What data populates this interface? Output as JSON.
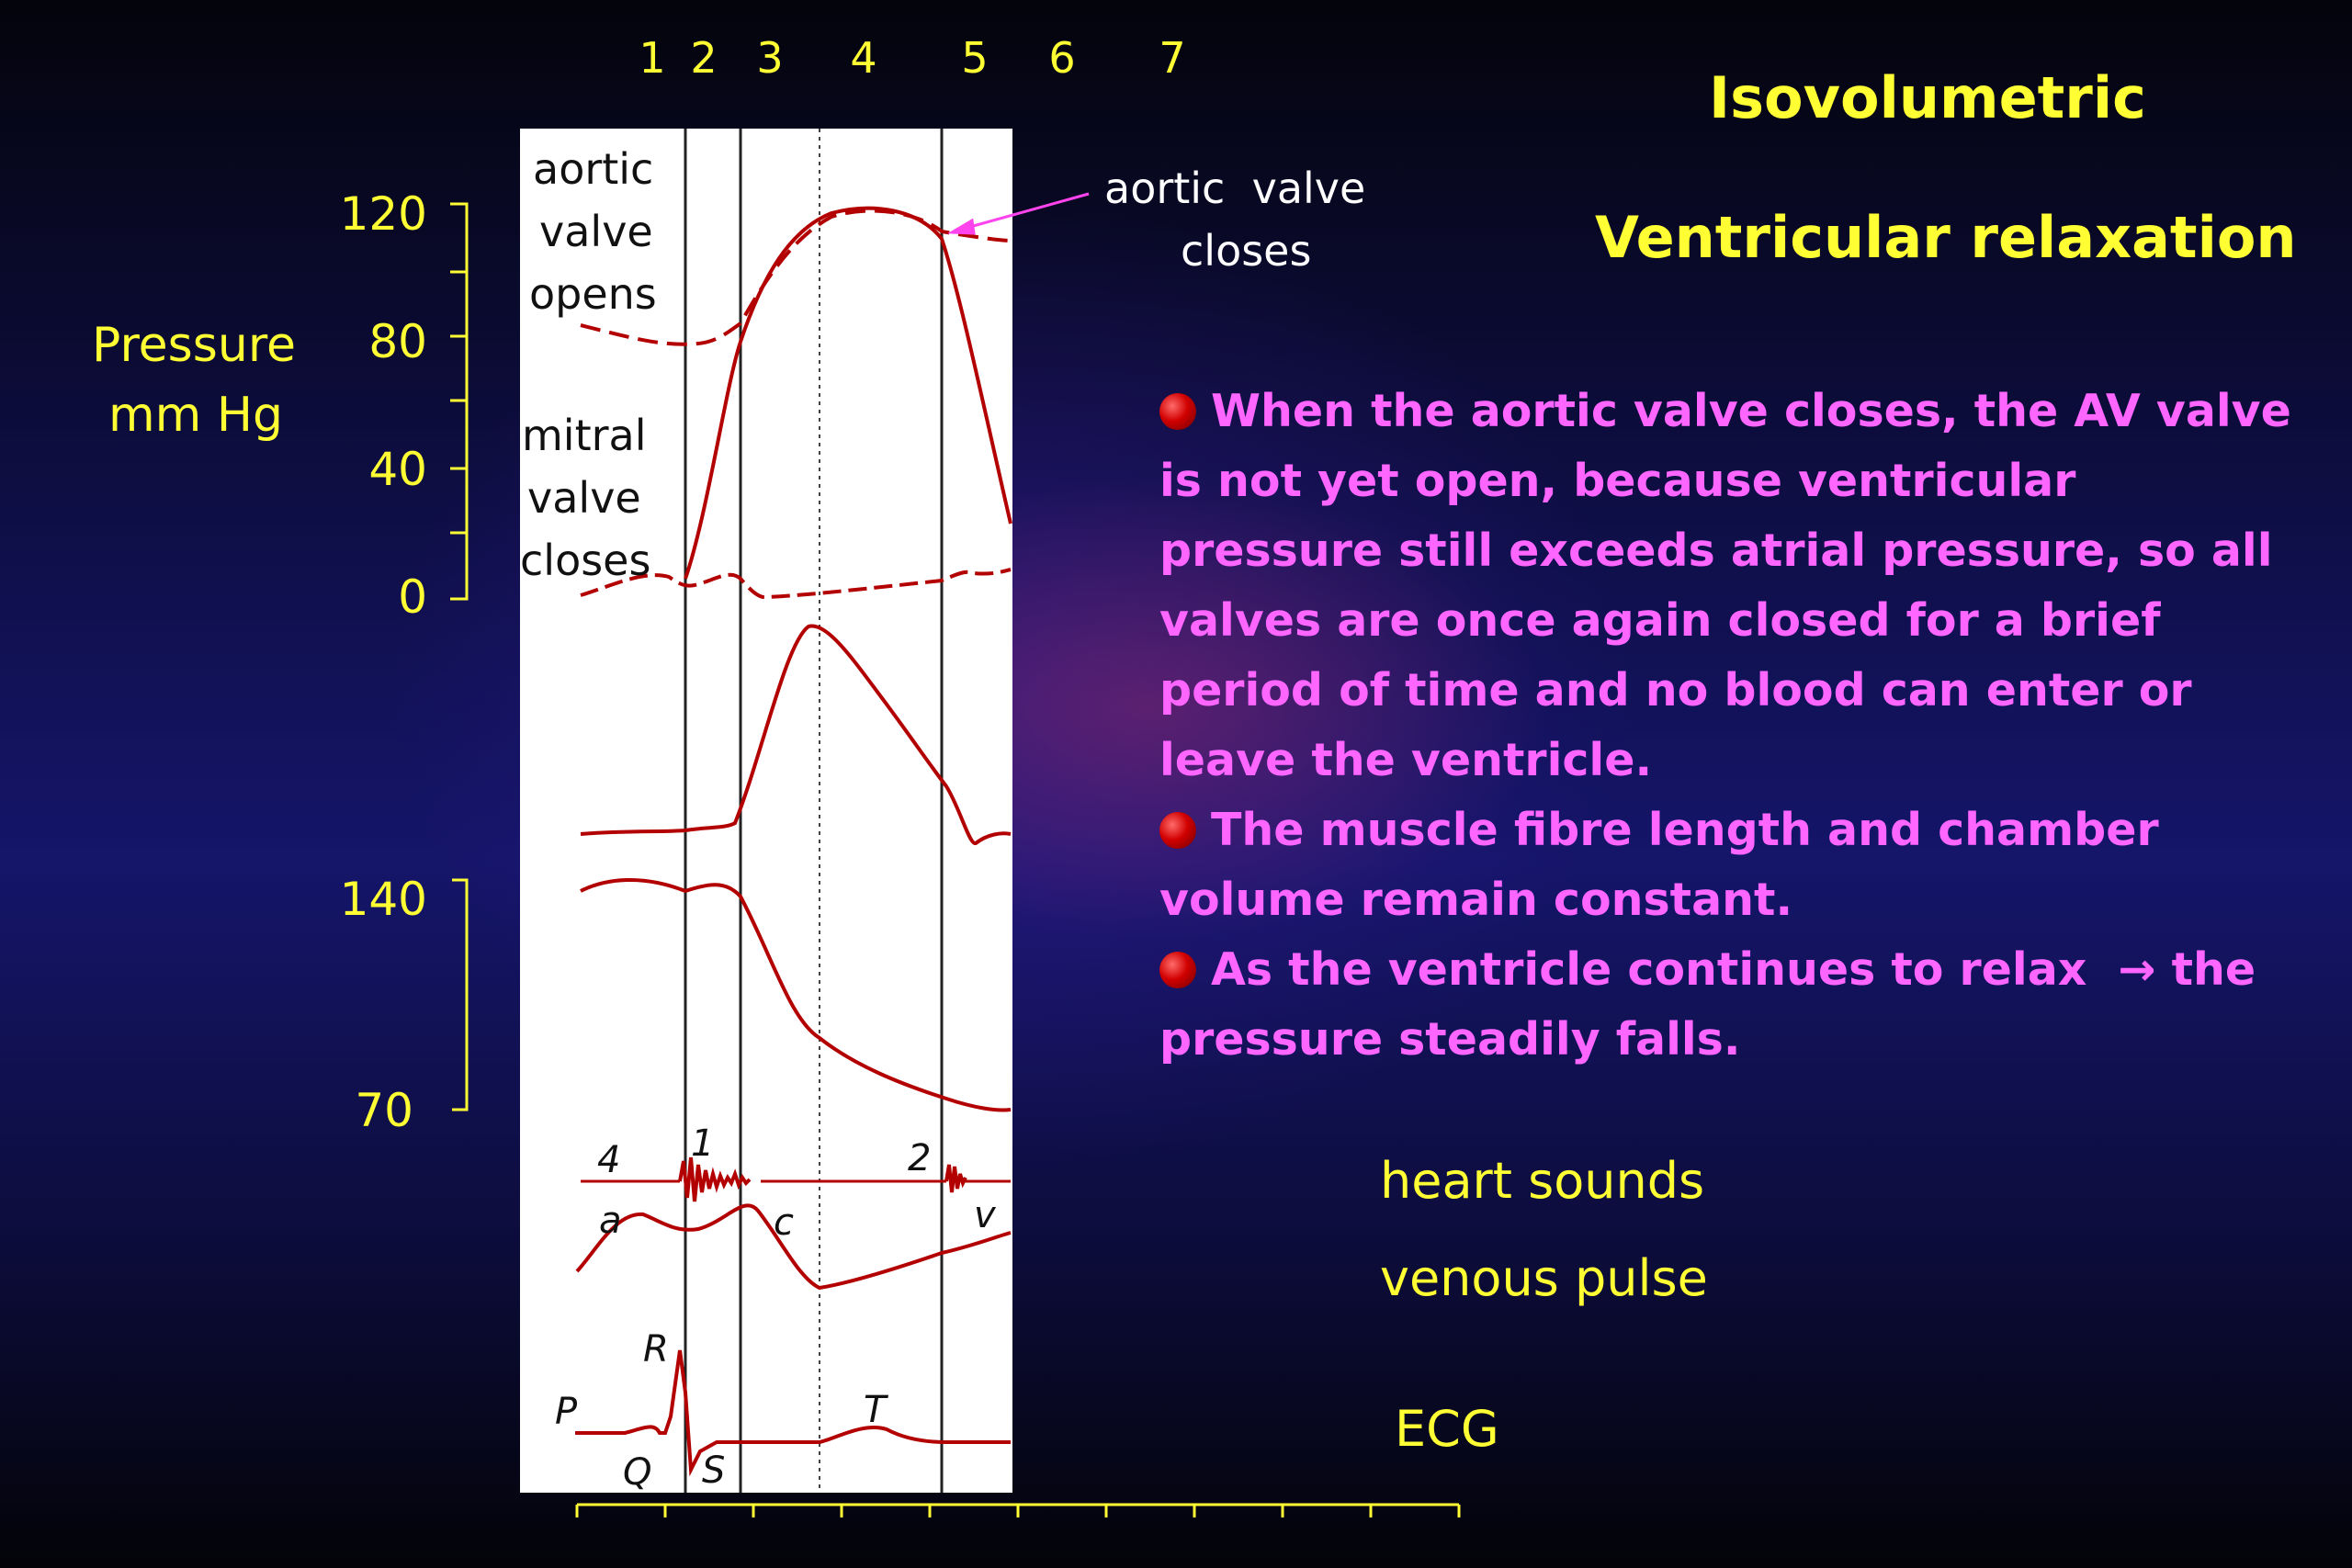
{
  "phase_numbers": [
    "1",
    "2",
    "3",
    "4",
    "5",
    "6",
    "7"
  ],
  "title": "Isovolumetric",
  "subtitle": "Ventricular relaxation",
  "pressure_axis": {
    "label_line1": "Pressure",
    "label_line2": "mm Hg",
    "ticks": [
      "120",
      "80",
      "40",
      "0"
    ]
  },
  "aortic_axis": {
    "ticks": [
      "140",
      "70"
    ]
  },
  "panel_labels": {
    "aortic_opens": [
      "aortic",
      "valve",
      "opens"
    ],
    "mitral_closes": [
      "mitral",
      "valve",
      "closes"
    ]
  },
  "annotation": {
    "line1": "aortic  valve",
    "line2": "closes",
    "arrow_color": "#ff44ee"
  },
  "bullets": [
    "When the aortic valve closes, the AV valve is not yet open, because ventricular pressure still exceeds atrial pressure, so all valves are once again closed for a brief period of time and no blood can enter or leave the ventricle.",
    "The muscle fibre length and chamber volume remain constant.",
    "As the ventricle continues to relax  → the pressure steadily falls."
  ],
  "trace_labels": {
    "heart_sounds": "heart sounds",
    "venous_pulse": "venous pulse",
    "ecg": "ECG"
  },
  "wave_letters": {
    "s4": "4",
    "s1": "1",
    "s2": "2",
    "a": "a",
    "c": "c",
    "v": "v",
    "P": "P",
    "Q": "Q",
    "R": "R",
    "S": "S",
    "T": "T"
  },
  "colors": {
    "trace": "#b30000",
    "text_yellow": "#ffff33",
    "text_pink": "#ff66ff",
    "bullet": "#d10000"
  }
}
